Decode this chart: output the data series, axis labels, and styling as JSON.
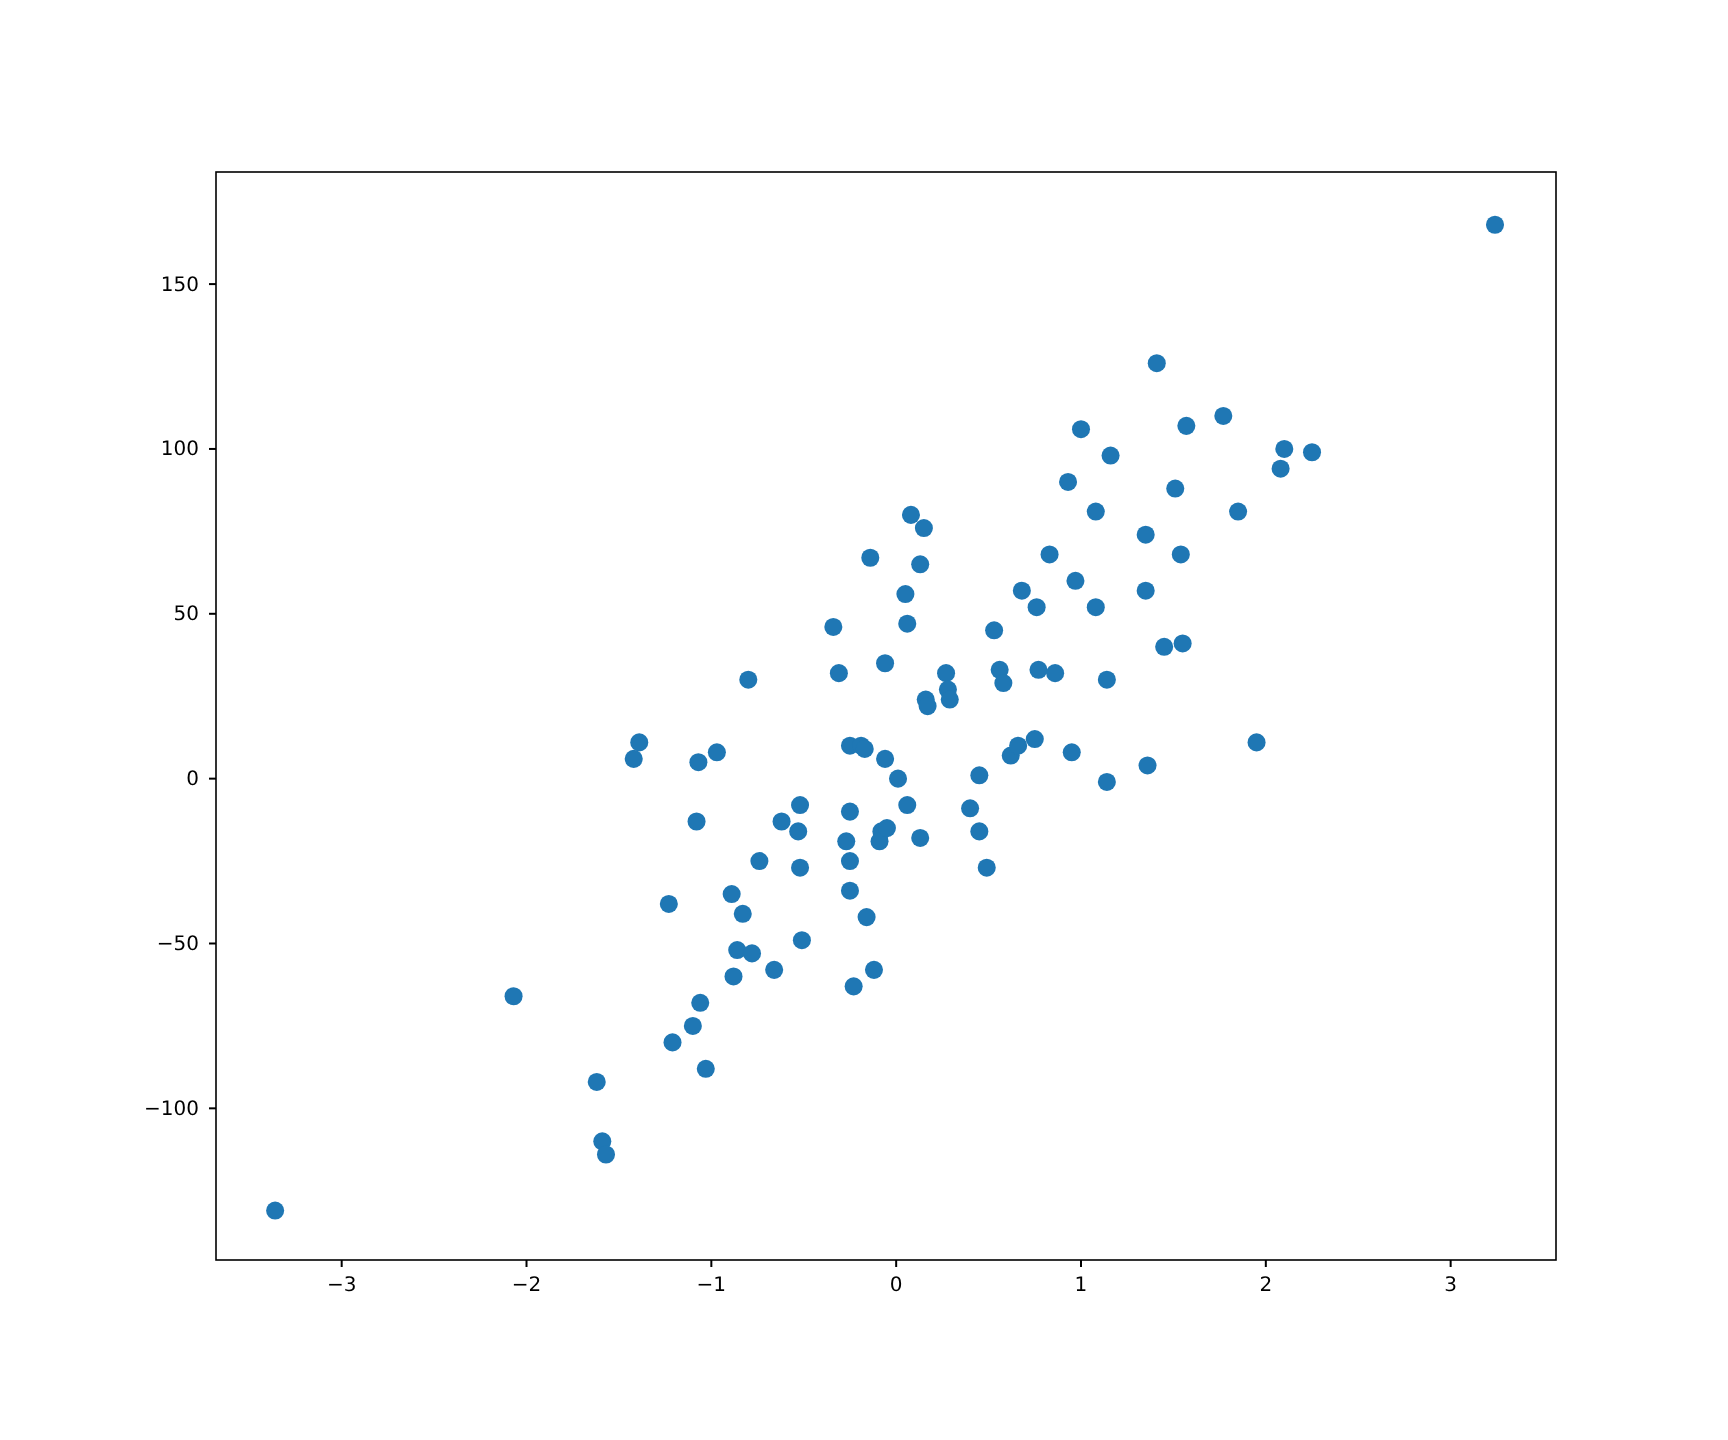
{
  "chart_data": {
    "type": "scatter",
    "marker": "circle",
    "grid": false,
    "xlim": [
      -3.68,
      3.57
    ],
    "ylim": [
      -146,
      184
    ],
    "xticks": [
      -3,
      -2,
      -1,
      0,
      1,
      2,
      3
    ],
    "yticks": [
      -100,
      -50,
      0,
      50,
      100,
      150
    ],
    "series": [
      {
        "color": "#1f77b4",
        "x": [
          3.24,
          -3.36,
          -2.07,
          -1.62,
          -1.59,
          -1.57,
          -1.21,
          -1.1,
          -1.06,
          -1.03,
          -1.23,
          -0.89,
          -0.83,
          -0.86,
          -0.78,
          -0.88,
          -0.66,
          -0.62,
          -0.74,
          -0.52,
          -0.53,
          -0.52,
          -0.51,
          -0.25,
          -0.27,
          -0.25,
          -0.25,
          -0.23,
          -0.16,
          -0.12,
          -0.08,
          -0.09,
          -0.05,
          -0.06,
          0.01,
          0.06,
          0.13,
          -0.25,
          -0.19,
          -0.17,
          -0.8,
          -0.97,
          -1.07,
          -1.08,
          -1.42,
          -1.39,
          -0.31,
          -0.34,
          -0.14,
          -0.06,
          0.05,
          0.06,
          0.08,
          0.13,
          0.15,
          0.16,
          0.17,
          0.27,
          0.28,
          0.29,
          0.4,
          0.45,
          0.45,
          0.49,
          0.53,
          0.56,
          0.58,
          0.62,
          0.66,
          0.68,
          0.76,
          0.75,
          0.77,
          0.83,
          0.86,
          0.93,
          0.97,
          1.0,
          1.08,
          1.08,
          1.14,
          1.14,
          1.16,
          0.95,
          1.35,
          1.35,
          1.36,
          1.41,
          1.45,
          1.51,
          1.54,
          1.55,
          1.57,
          1.77,
          1.85,
          1.95,
          2.08,
          2.1,
          2.25
        ],
        "values": [
          168,
          -131,
          -66,
          -92,
          -110,
          -114,
          -80,
          -75,
          -68,
          -88,
          -38,
          -35,
          -41,
          -52,
          -53,
          -60,
          -58,
          -13,
          -25,
          -8,
          -16,
          -27,
          -49,
          -10,
          -19,
          -25,
          -34,
          -63,
          -42,
          -58,
          -16,
          -19,
          -15,
          6,
          0,
          -8,
          -18,
          10,
          10,
          9,
          30,
          8,
          5,
          -13,
          6,
          11,
          32,
          46,
          67,
          35,
          56,
          47,
          80,
          65,
          76,
          24,
          22,
          32,
          27,
          24,
          -9,
          1,
          -16,
          -27,
          45,
          33,
          29,
          7,
          10,
          57,
          52,
          12,
          33,
          68,
          32,
          90,
          60,
          106,
          81,
          52,
          30,
          -1,
          98,
          8,
          74,
          57,
          4,
          126,
          40,
          88,
          68,
          41,
          107,
          110,
          81,
          11,
          94,
          100,
          99
        ]
      }
    ]
  }
}
